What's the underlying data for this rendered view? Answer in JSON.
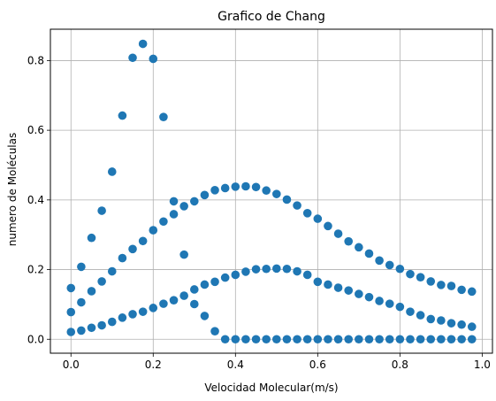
{
  "chart_data": {
    "type": "scatter",
    "title": "Grafico de Chang",
    "xlabel": "Velocidad Molecular(m/s)",
    "ylabel": "numero de Moléculas",
    "xlim": [
      -0.05,
      1.025
    ],
    "ylim": [
      -0.04,
      0.89
    ],
    "xticks": [
      0.0,
      0.2,
      0.4,
      0.6,
      0.8,
      1.0
    ],
    "xtick_labels": [
      "0.0",
      "0.2",
      "0.4",
      "0.6",
      "0.8",
      "1.0"
    ],
    "yticks": [
      0.0,
      0.2,
      0.4,
      0.6,
      0.8
    ],
    "ytick_labels": [
      "0.0",
      "0.2",
      "0.4",
      "0.6",
      "0.8"
    ],
    "grid": true,
    "marker_color": "#1f77b4",
    "series": [
      {
        "x": [
          0,
          0.025,
          0.05,
          0.075,
          0.1,
          0.125,
          0.15,
          0.175,
          0.2,
          0.225,
          0.25,
          0.275,
          0.3,
          0.325,
          0.35,
          0.375,
          0.4,
          0.425,
          0.45,
          0.475,
          0.5,
          0.525,
          0.55,
          0.575,
          0.6,
          0.625,
          0.65,
          0.675,
          0.7,
          0.725,
          0.75,
          0.775,
          0.8,
          0.825,
          0.85,
          0.875,
          0.9,
          0.925,
          0.95,
          0.975
        ],
        "y": [
          0.147,
          0.208,
          0.291,
          0.369,
          0.481,
          0.642,
          0.808,
          0.848,
          0.805,
          0.638,
          0.396,
          0.243,
          0.101,
          0.067,
          0.023,
          0,
          0,
          0,
          0,
          0,
          0,
          0,
          0,
          0,
          0,
          0,
          0,
          0,
          0,
          0,
          0,
          0,
          0,
          0,
          0,
          0,
          0,
          0,
          0,
          0
        ]
      },
      {
        "x": [
          0,
          0.025,
          0.05,
          0.075,
          0.1,
          0.125,
          0.15,
          0.175,
          0.2,
          0.225,
          0.25,
          0.275,
          0.3,
          0.325,
          0.35,
          0.375,
          0.4,
          0.425,
          0.45,
          0.475,
          0.5,
          0.525,
          0.55,
          0.575,
          0.6,
          0.625,
          0.65,
          0.675,
          0.7,
          0.725,
          0.75,
          0.775,
          0.8,
          0.825,
          0.85,
          0.875,
          0.9,
          0.925,
          0.95,
          0.975
        ],
        "y": [
          0.078,
          0.106,
          0.138,
          0.166,
          0.195,
          0.233,
          0.259,
          0.282,
          0.313,
          0.338,
          0.359,
          0.382,
          0.396,
          0.414,
          0.428,
          0.434,
          0.438,
          0.439,
          0.437,
          0.427,
          0.417,
          0.401,
          0.384,
          0.362,
          0.346,
          0.325,
          0.303,
          0.281,
          0.264,
          0.246,
          0.226,
          0.213,
          0.202,
          0.187,
          0.178,
          0.166,
          0.156,
          0.153,
          0.142,
          0.137
        ]
      },
      {
        "x": [
          0,
          0.025,
          0.05,
          0.075,
          0.1,
          0.125,
          0.15,
          0.175,
          0.2,
          0.225,
          0.25,
          0.275,
          0.3,
          0.325,
          0.35,
          0.375,
          0.4,
          0.425,
          0.45,
          0.475,
          0.5,
          0.525,
          0.55,
          0.575,
          0.6,
          0.625,
          0.65,
          0.675,
          0.7,
          0.725,
          0.75,
          0.775,
          0.8,
          0.825,
          0.85,
          0.875,
          0.9,
          0.925,
          0.95,
          0.975
        ],
        "y": [
          0.021,
          0.025,
          0.033,
          0.04,
          0.05,
          0.062,
          0.072,
          0.079,
          0.09,
          0.102,
          0.112,
          0.125,
          0.143,
          0.157,
          0.165,
          0.177,
          0.185,
          0.194,
          0.201,
          0.202,
          0.203,
          0.202,
          0.195,
          0.185,
          0.165,
          0.157,
          0.148,
          0.14,
          0.13,
          0.121,
          0.11,
          0.102,
          0.093,
          0.079,
          0.069,
          0.058,
          0.054,
          0.046,
          0.042,
          0.036
        ]
      }
    ]
  }
}
